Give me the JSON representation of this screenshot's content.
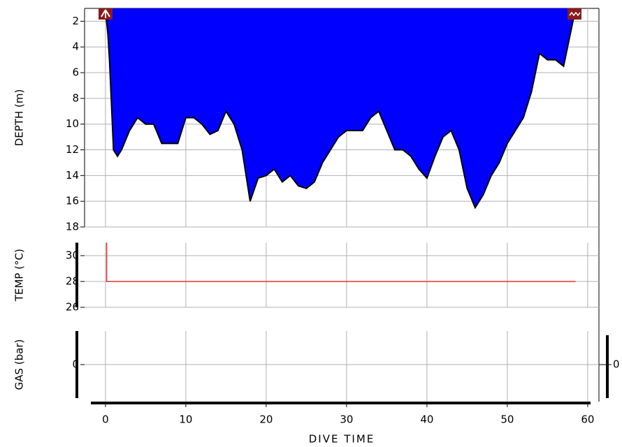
{
  "chart_data": [
    {
      "type": "area",
      "ylabel": "DEPTH (m)",
      "color": "#0000ff",
      "inverted": true,
      "xlim": [
        -2.6,
        61.4
      ],
      "ylim": [
        1,
        18
      ],
      "yticks": [
        2,
        4,
        6,
        8,
        10,
        12,
        14,
        16,
        18
      ],
      "grid": true,
      "x": [
        0,
        0.3,
        0.5,
        1,
        1.5,
        2,
        3,
        4,
        5,
        6,
        7,
        8,
        9,
        10,
        11,
        12,
        13,
        14,
        15,
        16,
        17,
        18,
        19,
        20,
        21,
        22,
        23,
        24,
        25,
        26,
        27,
        28,
        29,
        30,
        31,
        32,
        33,
        34,
        35,
        36,
        37,
        38,
        39,
        40,
        41,
        42,
        43,
        44,
        45,
        46,
        47,
        48,
        49,
        50,
        51,
        52,
        53,
        54,
        55,
        56,
        57,
        58,
        58.5
      ],
      "values": [
        1.2,
        3,
        5,
        12,
        12.5,
        12,
        10.5,
        9.5,
        10,
        10,
        11.5,
        11.5,
        11.5,
        9.5,
        9.5,
        10,
        10.8,
        10.5,
        9,
        10,
        12,
        16,
        14.2,
        14,
        13.5,
        14.5,
        14,
        14.8,
        15,
        14.5,
        13,
        12,
        11,
        10.5,
        10.5,
        10.5,
        9.5,
        9,
        10.5,
        12,
        12,
        12.5,
        13.5,
        14.2,
        12.5,
        11,
        10.5,
        12,
        15,
        16.5,
        15.5,
        14,
        13,
        11.5,
        10.5,
        9.5,
        7.5,
        4.5,
        5,
        5,
        5.5,
        2.5,
        1
      ]
    },
    {
      "type": "line",
      "ylabel": "TEMP (°C)",
      "color": "#e03030",
      "xlim": [
        -2.6,
        61.4
      ],
      "ylim": [
        26,
        31
      ],
      "yticks": [
        26,
        28,
        30
      ],
      "grid": true,
      "x": [
        0.15,
        0.15,
        58.5
      ],
      "values": [
        31,
        28,
        28
      ]
    },
    {
      "type": "axis",
      "ylabel": "GAS (bar)",
      "xlabel": "DIVE TIME",
      "xlim": [
        -2.6,
        61.4
      ],
      "ylim": [
        -1,
        1
      ],
      "yticks": [
        0
      ],
      "y2lim": [
        -1,
        1
      ],
      "y2ticks": [
        0
      ],
      "xticks": [
        0,
        10,
        20,
        30,
        40,
        50,
        60
      ],
      "grid": true
    }
  ]
}
